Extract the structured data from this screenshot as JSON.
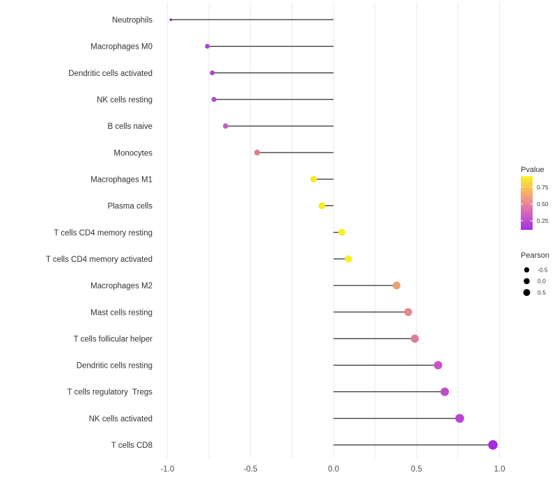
{
  "chart_data": {
    "type": "scatter",
    "subtype": "lollipop",
    "title": "",
    "xlabel": "",
    "ylabel": "",
    "xlim": [
      -1.1,
      1.1
    ],
    "grid": "vertical-only",
    "grid_color": "#ebebeb",
    "stem_color": "#111111",
    "x_grid_values": [
      -1.0,
      -0.75,
      -0.5,
      -0.25,
      0.0,
      0.25,
      0.5,
      0.75,
      1.0
    ],
    "x_tick_labels": [
      {
        "value": -1.0,
        "label": "-1.0"
      },
      {
        "value": -0.5,
        "label": "-0.5"
      },
      {
        "value": 0.0,
        "label": "0.0"
      },
      {
        "value": 0.5,
        "label": "0.5"
      },
      {
        "value": 1.0,
        "label": "1.0"
      }
    ],
    "points": [
      {
        "label": "Neutrophils",
        "pearson": -0.98,
        "color": "#8524D6",
        "r": 1.8
      },
      {
        "label": "Macrophages M0",
        "pearson": -0.76,
        "color": "#A649D3",
        "r": 3.4
      },
      {
        "label": "Dendritic cells activated",
        "pearson": -0.73,
        "color": "#AA4DD2",
        "r": 3.5
      },
      {
        "label": "NK cells resting",
        "pearson": -0.72,
        "color": "#AB4ED2",
        "r": 3.6
      },
      {
        "label": "B cells naive",
        "pearson": -0.65,
        "color": "#C05EC3",
        "r": 3.8
      },
      {
        "label": "Monocytes",
        "pearson": -0.46,
        "color": "#D9828F",
        "r": 4.2
      },
      {
        "label": "Macrophages M1",
        "pearson": -0.12,
        "color": "#F6E926",
        "r": 4.7
      },
      {
        "label": "Plasma cells",
        "pearson": -0.07,
        "color": "#F7EC25",
        "r": 4.9
      },
      {
        "label": "T cells CD4 memory resting",
        "pearson": 0.05,
        "color": "#F8F022",
        "r": 5.0
      },
      {
        "label": "T cells CD4 memory activated",
        "pearson": 0.09,
        "color": "#F8F022",
        "r": 5.2
      },
      {
        "label": "Macrophages M2",
        "pearson": 0.38,
        "color": "#EC9F6C",
        "r": 5.5
      },
      {
        "label": "Mast cells resting",
        "pearson": 0.45,
        "color": "#E18B91",
        "r": 5.7
      },
      {
        "label": "T cells follicular helper",
        "pearson": 0.49,
        "color": "#DB7F97",
        "r": 5.8
      },
      {
        "label": "Dendritic cells resting",
        "pearson": 0.63,
        "color": "#C754C6",
        "r": 6.0
      },
      {
        "label": "T cells regulatory  Tregs",
        "pearson": 0.67,
        "color": "#BF4BCE",
        "r": 6.1
      },
      {
        "label": "NK cells activated",
        "pearson": 0.76,
        "color": "#B744D7",
        "r": 6.3
      },
      {
        "label": "T cells CD8",
        "pearson": 0.96,
        "color": "#A52BE1",
        "r": 6.8
      }
    ],
    "legend_pvalue": {
      "title": "Pvalue",
      "tick_labels": [
        "0.75",
        "0.50",
        "0.25"
      ],
      "gradient_stops": [
        {
          "offset": 0,
          "color": "#F9F229"
        },
        {
          "offset": 25,
          "color": "#F6BC58"
        },
        {
          "offset": 50,
          "color": "#EC8795"
        },
        {
          "offset": 75,
          "color": "#CC5BC7"
        },
        {
          "offset": 100,
          "color": "#A22EE2"
        }
      ]
    },
    "legend_pearson": {
      "title": "Pearson",
      "items": [
        {
          "label": "-0.5",
          "r": 3.7
        },
        {
          "label": "0.0",
          "r": 4.3
        },
        {
          "label": "0.5",
          "r": 5.0
        }
      ],
      "dot_color": "#000000"
    },
    "text_color": "#333333",
    "axis_text_color": "#4D4D4D"
  }
}
